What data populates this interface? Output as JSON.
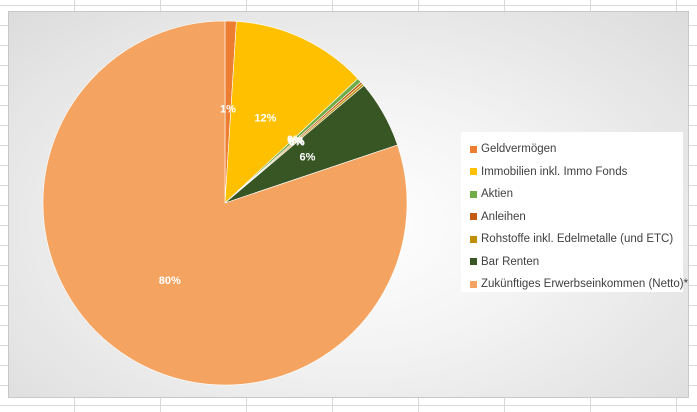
{
  "chart_data": {
    "type": "pie",
    "title": "",
    "legend_position": "right",
    "slices": [
      {
        "name": "Geldvermögen",
        "value": 1,
        "label": "1%",
        "color": "#ED7D31"
      },
      {
        "name": "Immobilien inkl. Immo Fonds",
        "value": 12,
        "label": "12%",
        "color": "#FFC000"
      },
      {
        "name": "Aktien",
        "value": 0.4,
        "label": "0%",
        "color": "#70AD47"
      },
      {
        "name": "Anleihen",
        "value": 0.2,
        "label": "0%",
        "color": "#C55A11"
      },
      {
        "name": "Rohstoffe inkl. Edelmetalle (und ETC)",
        "value": 0.2,
        "label": "0%",
        "color": "#BF8F00"
      },
      {
        "name": "Bar Renten",
        "value": 6,
        "label": "6%",
        "color": "#375623"
      },
      {
        "name": "Zukünftiges Erwerbseinkommen (Netto)*",
        "value": 80,
        "label": "80%",
        "color": "#F4A460"
      }
    ]
  }
}
